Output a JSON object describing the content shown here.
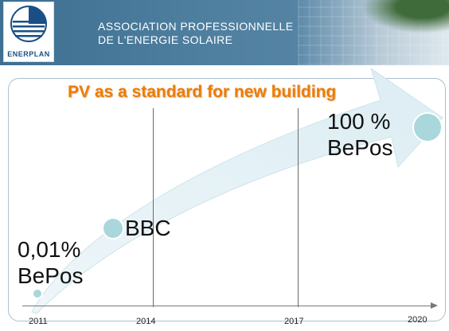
{
  "header": {
    "logo_text": "ENERPLAN",
    "org_line1": "ASSOCIATION PROFESSIONNELLE",
    "org_line2": "DE L'ENERGIE SOLAIRE"
  },
  "slide": {
    "title": "PV as a standard for new building",
    "timeline": {
      "years": [
        "2011",
        "2014",
        "2017",
        "2020"
      ]
    },
    "milestones": [
      {
        "line1": "0,01%",
        "line2": "BePos"
      },
      {
        "line1": "BBC"
      },
      {
        "line1": "100 %",
        "line2": "BePos"
      }
    ]
  },
  "colors": {
    "title": "#f07c00",
    "header": "#4f7f9f",
    "arrow": "#e6f2f6",
    "dot": "#a9d7dc"
  }
}
